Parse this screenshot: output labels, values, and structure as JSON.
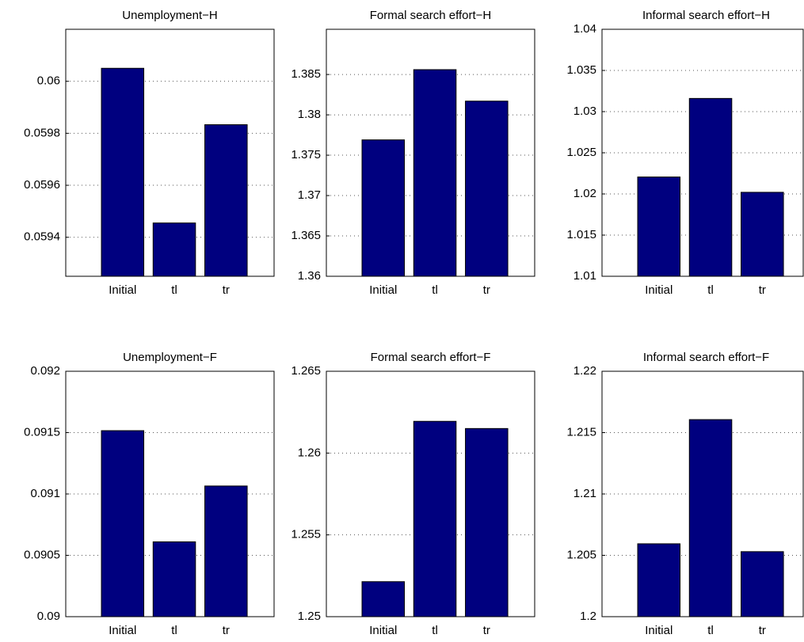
{
  "chart_data": [
    {
      "type": "bar",
      "title": "Unemployment−H",
      "categories": [
        "Initial",
        "tl",
        "tr"
      ],
      "values": [
        0.06005,
        0.059455,
        0.059833
      ],
      "color": "#00007f",
      "ylim": [
        0.05925,
        0.0602
      ],
      "yticks": [
        0.0594,
        0.0596,
        0.0598,
        0.06
      ],
      "grid": true
    },
    {
      "type": "bar",
      "title": "Formal search effort−H",
      "categories": [
        "Initial",
        "tl",
        "tr"
      ],
      "values": [
        1.3769,
        1.3856,
        1.3817
      ],
      "color": "#00007f",
      "ylim": [
        1.36,
        1.3906
      ],
      "yticks": [
        1.36,
        1.365,
        1.37,
        1.375,
        1.38,
        1.385
      ],
      "grid": true
    },
    {
      "type": "bar",
      "title": "Informal search effort−H",
      "categories": [
        "Initial",
        "tl",
        "tr"
      ],
      "values": [
        1.02206,
        1.0316,
        1.0202
      ],
      "color": "#00007f",
      "ylim": [
        1.01,
        1.04
      ],
      "yticks": [
        1.01,
        1.015,
        1.02,
        1.025,
        1.03,
        1.035,
        1.04
      ],
      "grid": true
    },
    {
      "type": "bar",
      "title": "Unemployment−F",
      "categories": [
        "Initial",
        "tl",
        "tr"
      ],
      "values": [
        0.091516,
        0.09061,
        0.091065
      ],
      "color": "#00007f",
      "ylim": [
        0.09,
        0.092
      ],
      "yticks": [
        0.09,
        0.0905,
        0.091,
        0.0915,
        0.092
      ],
      "grid": true
    },
    {
      "type": "bar",
      "title": "Formal search effort−F",
      "categories": [
        "Initial",
        "tl",
        "tr"
      ],
      "values": [
        1.25214,
        1.26194,
        1.2615
      ],
      "color": "#00007f",
      "ylim": [
        1.25,
        1.265
      ],
      "yticks": [
        1.25,
        1.255,
        1.26,
        1.265
      ],
      "grid": true
    },
    {
      "type": "bar",
      "title": "Informal search effort−F",
      "categories": [
        "Initial",
        "tl",
        "tr"
      ],
      "values": [
        1.20594,
        1.21606,
        1.2053
      ],
      "color": "#00007f",
      "ylim": [
        1.2,
        1.22
      ],
      "yticks": [
        1.2,
        1.205,
        1.21,
        1.215,
        1.22
      ],
      "grid": true
    }
  ]
}
